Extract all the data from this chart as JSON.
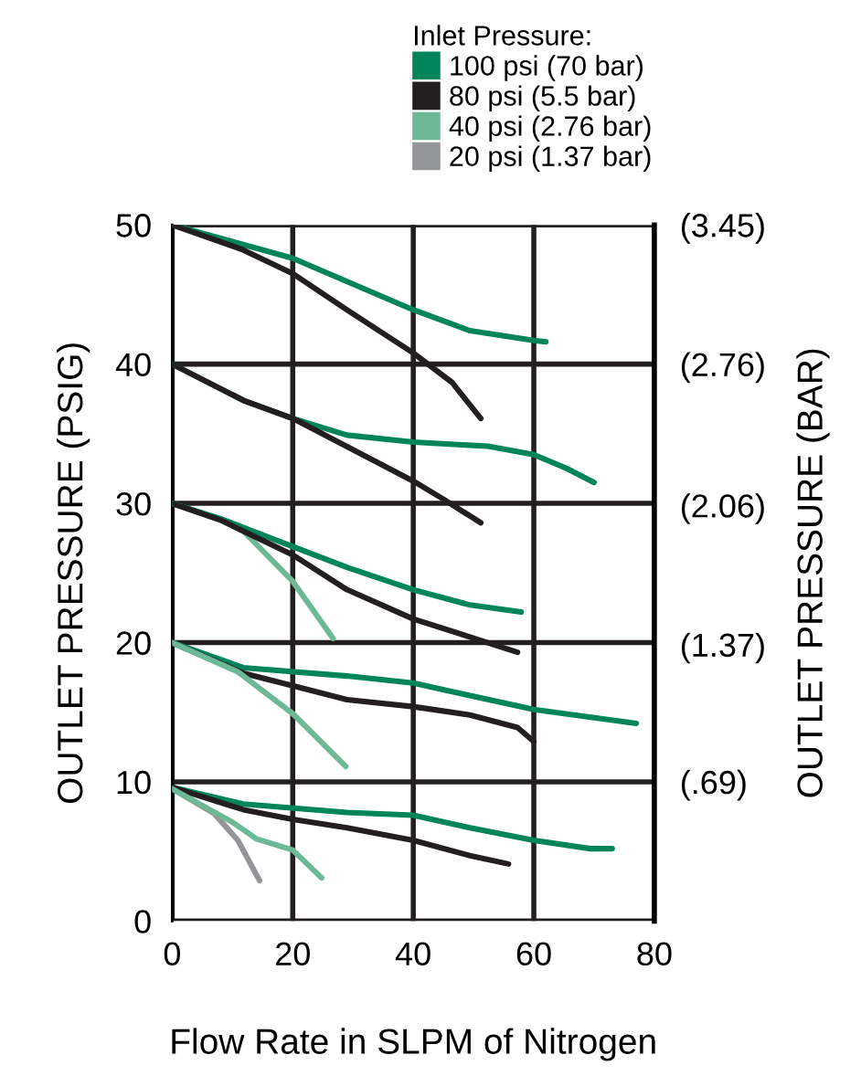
{
  "chart_data": {
    "type": "line",
    "xlabel": "Flow Rate in SLPM of Nitrogen",
    "ylabel": "OUTLET PRESSURE (PSIG)",
    "y2label": "OUTLET PRESSURE (BAR)",
    "legend_title": "Inlet Pressure:",
    "xlim": [
      0,
      80
    ],
    "xticks": [
      0,
      20,
      40,
      60,
      80
    ],
    "ylim": [
      0,
      50
    ],
    "yticks": [
      0,
      10,
      20,
      30,
      40,
      50
    ],
    "y2lim": [
      0,
      3.45
    ],
    "y2ticks": [
      {
        "value": 0.69,
        "label": "(.69)"
      },
      {
        "value": 1.37,
        "label": "(1.37)"
      },
      {
        "value": 2.06,
        "label": "(2.06)"
      },
      {
        "value": 2.76,
        "label": "(2.76)"
      },
      {
        "value": 3.45,
        "label": "(3.45)"
      }
    ],
    "grid": true,
    "legend": "top right",
    "marker": "none",
    "line_style": "solid",
    "series": [
      {
        "name": "100 psi (70 bar)",
        "color": "#00855a",
        "x": [
          0,
          20,
          40,
          49.4,
          60,
          62
        ],
        "values": [
          50,
          47.6,
          43.9,
          42.4,
          41.7,
          41.6
        ]
      },
      {
        "name": "80 psi (5.5 bar)",
        "color": "#231f20",
        "x": [
          0,
          11.8,
          20,
          29,
          40,
          46.4,
          51.2
        ],
        "values": [
          50,
          48.2,
          46.5,
          43.9,
          40.8,
          38.7,
          36.1
        ]
      },
      {
        "name": "40 psi (2.76 bar)",
        "color": "#6db896",
        "x": [
          0,
          10.9,
          20,
          26.7
        ],
        "values": [
          30,
          28.4,
          24.4,
          20.3
        ]
      },
      {
        "name": "20 psi (1.37 bar)",
        "color": "#939598",
        "x": [
          0,
          7,
          10.9,
          14.5
        ],
        "values": [
          9.5,
          7.7,
          5.8,
          2.9
        ]
      },
      {
        "color": "#00855a",
        "x": [
          0,
          11.8,
          20,
          29,
          40,
          52.4,
          60,
          65.5,
          70
        ],
        "values": [
          40,
          37.4,
          36.1,
          34.9,
          34.4,
          34.1,
          33.5,
          32.5,
          31.5
        ]
      },
      {
        "color": "#231f20",
        "x": [
          0,
          11.8,
          20,
          40,
          45,
          51.2
        ],
        "values": [
          40,
          37.4,
          36.1,
          31.6,
          30.3,
          28.6
        ]
      },
      {
        "color": "#00855a",
        "x": [
          0,
          8,
          20,
          29,
          40,
          49.4,
          57.9
        ],
        "values": [
          30,
          28.9,
          26.9,
          25.4,
          23.8,
          22.7,
          22.2
        ]
      },
      {
        "color": "#231f20",
        "x": [
          0,
          8,
          20,
          29,
          40,
          49.4,
          57.3
        ],
        "values": [
          30,
          28.8,
          26.3,
          23.8,
          21.7,
          20.4,
          19.3
        ]
      },
      {
        "color": "#00855a",
        "x": [
          0,
          11.8,
          29,
          40,
          49.4,
          60,
          77
        ],
        "values": [
          20,
          18.2,
          17.6,
          17.1,
          16.2,
          15.2,
          14.2
        ]
      },
      {
        "color": "#231f20",
        "x": [
          0,
          11.8,
          20,
          29,
          40,
          49.4,
          57.3,
          60
        ],
        "values": [
          20,
          17.8,
          16.9,
          15.9,
          15.4,
          14.8,
          13.9,
          12.9
        ]
      },
      {
        "color": "#6db896",
        "x": [
          0,
          10.9,
          20,
          28.8
        ],
        "values": [
          20,
          17.9,
          14.9,
          11.1
        ]
      },
      {
        "color": "#00855a",
        "x": [
          0,
          11.8,
          29,
          40,
          49.4,
          60,
          69.4,
          73
        ],
        "values": [
          9.6,
          8.4,
          7.8,
          7.6,
          6.7,
          5.8,
          5.2,
          5.2
        ]
      },
      {
        "color": "#231f20",
        "x": [
          0,
          11.8,
          20,
          29,
          40,
          49.4,
          55.8
        ],
        "values": [
          9.6,
          8.0,
          7.3,
          6.7,
          5.8,
          4.7,
          4.1
        ]
      },
      {
        "color": "#6db896",
        "x": [
          0,
          10,
          14,
          20,
          24.8
        ],
        "values": [
          9.5,
          7.1,
          5.9,
          5.1,
          3.1
        ]
      }
    ]
  }
}
